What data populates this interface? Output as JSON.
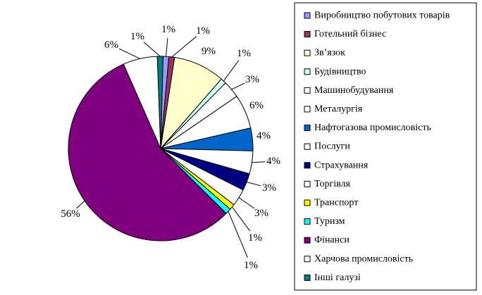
{
  "chart_data": {
    "type": "pie",
    "title": "",
    "legend_position": "right",
    "slices": [
      {
        "label": "Виробництво побутових товарів",
        "value": 1,
        "display": "1%",
        "color": "#9999ff"
      },
      {
        "label": "Готельний бізнес",
        "value": 1,
        "display": "1%",
        "color": "#993366"
      },
      {
        "label": "Зв’язок",
        "value": 9,
        "display": "9%",
        "color": "#ffffcc"
      },
      {
        "label": "Будівництво",
        "value": 1,
        "display": "1%",
        "color": "#ccffff"
      },
      {
        "label": "Машинобудування",
        "value": 3,
        "display": "3%",
        "color": "#ffffff"
      },
      {
        "label": "Металургія",
        "value": 6,
        "display": "6%",
        "color": "#ffffff"
      },
      {
        "label": "Нафтогазова промисловість",
        "value": 4,
        "display": "4%",
        "color": "#0066cc"
      },
      {
        "label": "Послуги",
        "value": 4,
        "display": "4%",
        "color": "#ffffff"
      },
      {
        "label": "Страхування",
        "value": 3,
        "display": "3%",
        "color": "#000080"
      },
      {
        "label": "Торгівля",
        "value": 3,
        "display": "3%",
        "color": "#ffffff"
      },
      {
        "label": "Транспорт",
        "value": 1,
        "display": "1%",
        "color": "#ffff00"
      },
      {
        "label": "Туризм",
        "value": 1,
        "display": "1%",
        "color": "#00ffff"
      },
      {
        "label": "Фінанси",
        "value": 56,
        "display": "56%",
        "color": "#800080"
      },
      {
        "label": "Харчова промисловість",
        "value": 6,
        "display": "6%",
        "color": "#ffffff"
      },
      {
        "label": "Інші галузі",
        "value": 1,
        "display": "1%",
        "color": "#008080"
      }
    ]
  }
}
